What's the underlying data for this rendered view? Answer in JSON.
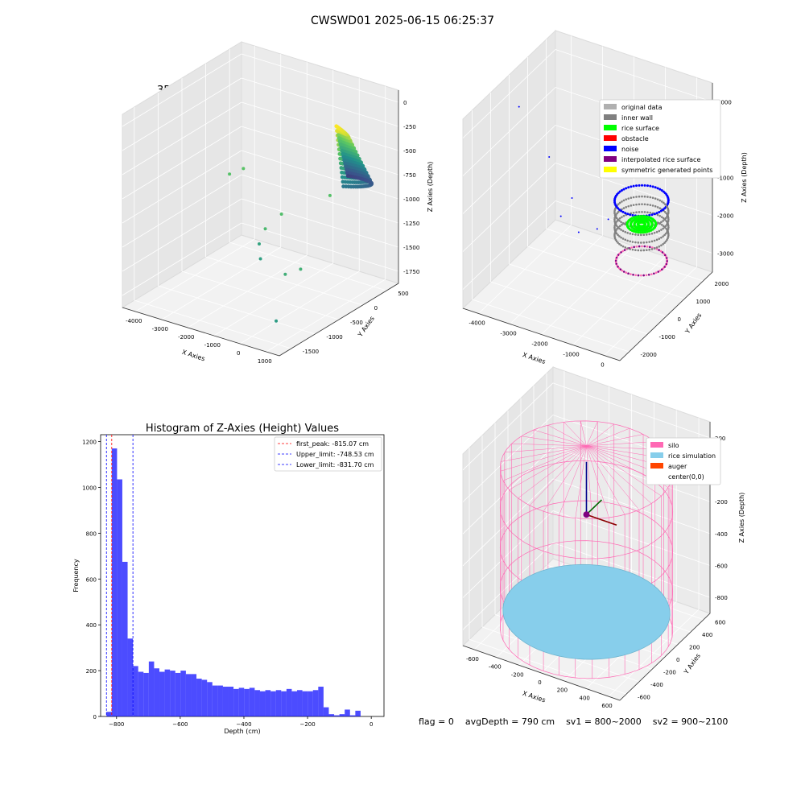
{
  "figure": {
    "suptitle": "CWSWD01 2025-06-15 06:25:37",
    "status": {
      "flag": "flag = 0",
      "avg_depth": "avgDepth = 790 cm",
      "sv1": "sv1 = 800~2000",
      "sv2": "sv2 = 900~2100"
    },
    "colors": {
      "hist_bar": "#0000ff",
      "first_peak": "#ff0000",
      "upper_limit": "#0000ff",
      "lower_limit": "#0000ff",
      "silo": "#ff69b4",
      "rice_simulation": "#87ceeb",
      "auger": "#ff4500"
    }
  },
  "chart_data": [
    {
      "type": "scatter",
      "panel": "raw",
      "title": "3D Plot of Silo Interior(row data)",
      "xlabel": "X Axies",
      "ylabel": "Y Axies",
      "zlabel": "Z Axies (Depth)",
      "xticks": [
        "-4000",
        "-3000",
        "-2000",
        "-1000",
        "0",
        "1000"
      ],
      "yticks": [
        "-1500",
        "-1000",
        "-500",
        "0",
        "500"
      ],
      "zticks": [
        "0",
        "-250",
        "-500",
        "-750",
        "-1000",
        "-1250",
        "-1500",
        "-1750"
      ],
      "xlim": [
        -4300,
        1100
      ],
      "ylim": [
        -1600,
        700
      ],
      "zlim": [
        -1850,
        50
      ],
      "colormap": "viridis",
      "outliers": [
        {
          "x": -4000,
          "y": 300,
          "z": -1100
        },
        {
          "x": -3700,
          "y": 400,
          "z": -1050
        },
        {
          "x": -2800,
          "y": 200,
          "z": -1650
        },
        {
          "x": -2400,
          "y": 0,
          "z": -1700
        },
        {
          "x": -1500,
          "y": -100,
          "z": -1150
        },
        {
          "x": -1700,
          "y": -300,
          "z": -1250
        },
        {
          "x": -900,
          "y": 500,
          "z": -1100
        },
        {
          "x": -300,
          "y": -700,
          "z": -1450
        },
        {
          "x": 50,
          "y": -600,
          "z": -1400
        },
        {
          "x": 100,
          "y": -1100,
          "z": -1750
        }
      ]
    },
    {
      "type": "scatter",
      "panel": "classify",
      "title": "3D classify of Silo Interior",
      "xlabel": "X Axies",
      "ylabel": "Y Axies",
      "zlabel": "Z Axies (Depth)",
      "xticks": [
        "-4000",
        "-3000",
        "-2000",
        "-1000",
        "0"
      ],
      "yticks": [
        "-2000",
        "-1000",
        "0",
        "1000",
        "2000"
      ],
      "zticks": [
        "1000",
        "0",
        "-1000",
        "-2000",
        "-3000"
      ],
      "xlim": [
        -4300,
        800
      ],
      "ylim": [
        -2500,
        2500
      ],
      "zlim": [
        -3300,
        1100
      ],
      "legend_position": "upper right",
      "legend": [
        {
          "label": "original data",
          "color": "#b0b0b0"
        },
        {
          "label": "inner wall",
          "color": "#808080"
        },
        {
          "label": "rice surface",
          "color": "#00ff00"
        },
        {
          "label": "obstacle",
          "color": "#ff0000"
        },
        {
          "label": "noise",
          "color": "#0000ff"
        },
        {
          "label": "interpolated rice surface",
          "color": "#800080"
        },
        {
          "label": "symmetric generated points",
          "color": "#ffff00"
        }
      ]
    },
    {
      "type": "bar",
      "panel": "histogram",
      "title": "Histogram of Z-Axies (Height) Values",
      "xlabel": "Depth (cm)",
      "ylabel": "Frequency",
      "xlim": [
        -850,
        40
      ],
      "ylim": [
        0,
        1230
      ],
      "xticks": [
        -800,
        -600,
        -400,
        -200,
        0
      ],
      "yticks": [
        0,
        200,
        400,
        600,
        800,
        1000,
        1200
      ],
      "bin_start": -831.7,
      "bin_width": 16.63,
      "values": [
        20,
        1170,
        1035,
        675,
        340,
        220,
        195,
        190,
        240,
        210,
        195,
        205,
        200,
        190,
        200,
        185,
        185,
        165,
        160,
        150,
        135,
        135,
        130,
        130,
        120,
        125,
        120,
        125,
        115,
        110,
        115,
        110,
        115,
        110,
        120,
        110,
        115,
        110,
        110,
        115,
        130,
        40,
        10,
        5,
        10,
        30,
        5,
        25
      ],
      "lines": [
        {
          "label": "first_peak: -815.07 cm",
          "x": -815.07,
          "color": "#ff0000"
        },
        {
          "label": "Upper_limit: -748.53 cm",
          "x": -748.53,
          "color": "#0000ff"
        },
        {
          "label": "Lower_limit: -831.70 cm",
          "x": -831.7,
          "color": "#0000ff"
        }
      ],
      "legend_position": "upper right"
    },
    {
      "type": "scatter",
      "panel": "simulation",
      "title": "3D simulation of Silo Interior",
      "xlabel": "X Axies",
      "ylabel": "Y Axies",
      "zlabel": "Z Axies (Depth)",
      "xticks": [
        "-600",
        "-400",
        "-200",
        "0",
        "200",
        "400",
        "600"
      ],
      "yticks": [
        "-600",
        "-400",
        "-200",
        "0",
        "200",
        "400",
        "600"
      ],
      "zticks": [
        "200",
        "0",
        "-200",
        "-400",
        "-600",
        "-800"
      ],
      "xlim": [
        -650,
        650
      ],
      "ylim": [
        -650,
        650
      ],
      "zlim": [
        -900,
        300
      ],
      "silo_radius": 620,
      "silo_top": 100,
      "silo_bottom": -900,
      "rice_depth": -790,
      "legend_position": "upper right",
      "legend": [
        {
          "label": "silo",
          "color": "#ff69b4"
        },
        {
          "label": "rice simulation",
          "color": "#87ceeb"
        },
        {
          "label": "auger",
          "color": "#ff4500"
        },
        {
          "label": "center(0,0)",
          "color": ""
        }
      ]
    }
  ]
}
